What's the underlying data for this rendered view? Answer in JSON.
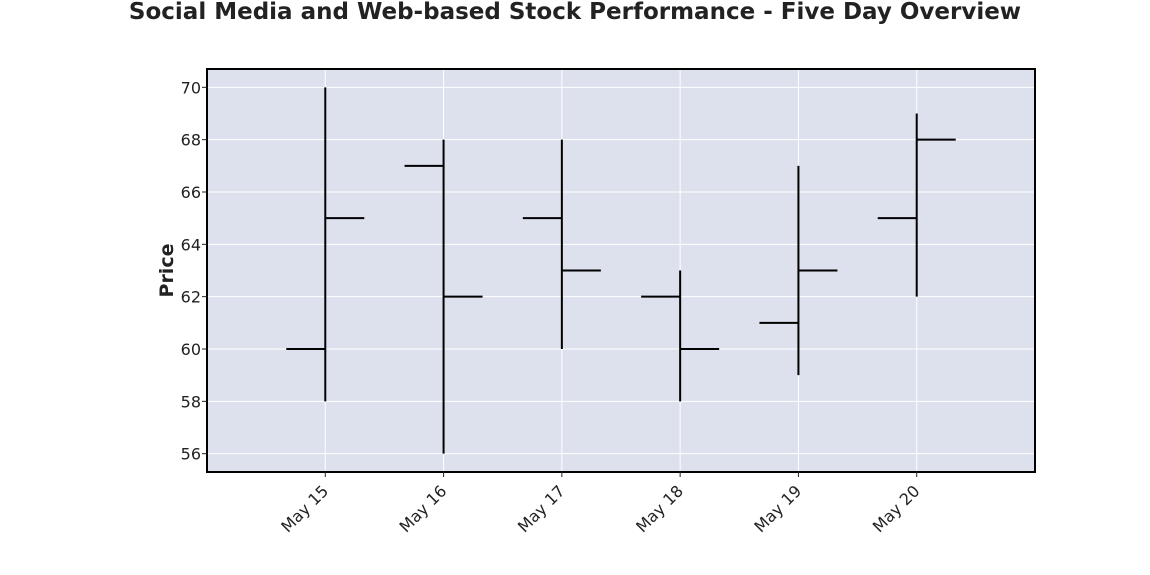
{
  "chart_data": {
    "type": "ohlc",
    "title": "Social Media and Web-based Stock Performance - Five Day Overview",
    "xlabel": "",
    "ylabel": "Price",
    "categories": [
      "May 15",
      "May 16",
      "May 17",
      "May 18",
      "May 19",
      "May 20"
    ],
    "series": [
      {
        "open": [
          60,
          67,
          65,
          62,
          61,
          65
        ],
        "high": [
          70,
          68,
          68,
          63,
          67,
          69
        ],
        "low": [
          58,
          56,
          60,
          58,
          59,
          62
        ],
        "close": [
          65,
          62,
          63,
          60,
          63,
          68
        ]
      }
    ],
    "ylim": [
      55.3,
      70.7
    ],
    "yticks": [
      56,
      58,
      60,
      62,
      64,
      66,
      68,
      70
    ],
    "grid": true,
    "colors": {
      "plot_background": "#dde1ee",
      "grid": "#ffffff",
      "bar": "#000000",
      "frame": "#000000"
    }
  }
}
